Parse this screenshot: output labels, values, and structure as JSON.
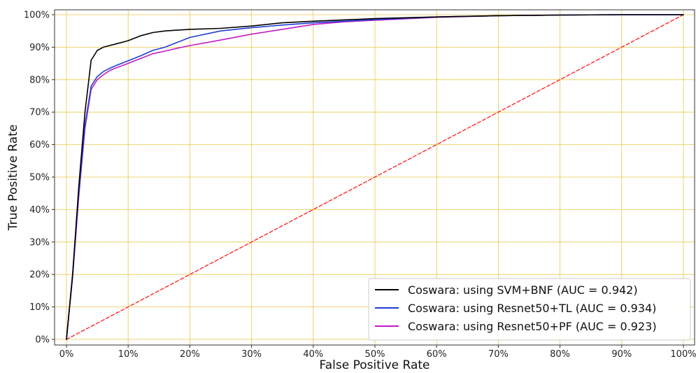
{
  "chart_data": {
    "type": "line",
    "title": "",
    "xlabel": "False Positive Rate",
    "ylabel": "True Positive Rate",
    "xlim": [
      0,
      1
    ],
    "ylim": [
      0,
      1
    ],
    "x_ticks": [
      "0%",
      "10%",
      "20%",
      "30%",
      "40%",
      "50%",
      "60%",
      "70%",
      "80%",
      "90%",
      "100%"
    ],
    "y_ticks": [
      "0%",
      "10%",
      "20%",
      "30%",
      "40%",
      "50%",
      "60%",
      "70%",
      "80%",
      "90%",
      "100%"
    ],
    "grid": true,
    "grid_color": "#e8c94a",
    "legend_position": "bottom-right",
    "series": [
      {
        "name": "Coswara: using SVM+BNF (AUC = 0.942)",
        "color": "#000000",
        "x": [
          0,
          0.01,
          0.02,
          0.03,
          0.04,
          0.05,
          0.06,
          0.07,
          0.08,
          0.1,
          0.12,
          0.14,
          0.16,
          0.2,
          0.25,
          0.3,
          0.35,
          0.4,
          0.5,
          0.6,
          0.7,
          0.8,
          0.9,
          1.0
        ],
        "y": [
          0,
          0.2,
          0.47,
          0.7,
          0.86,
          0.89,
          0.9,
          0.905,
          0.91,
          0.92,
          0.935,
          0.945,
          0.95,
          0.955,
          0.958,
          0.965,
          0.975,
          0.98,
          0.988,
          0.993,
          0.997,
          0.999,
          1.0,
          1.0
        ]
      },
      {
        "name": "Coswara: using Resnet50+TL (AUC = 0.934)",
        "color": "#1f3fd6",
        "x": [
          0,
          0.01,
          0.02,
          0.03,
          0.04,
          0.05,
          0.06,
          0.07,
          0.08,
          0.1,
          0.12,
          0.14,
          0.16,
          0.18,
          0.2,
          0.25,
          0.3,
          0.35,
          0.4,
          0.5,
          0.6,
          0.7,
          0.8,
          0.9,
          1.0
        ],
        "y": [
          0,
          0.2,
          0.45,
          0.66,
          0.78,
          0.81,
          0.825,
          0.835,
          0.843,
          0.858,
          0.873,
          0.89,
          0.9,
          0.915,
          0.93,
          0.95,
          0.96,
          0.968,
          0.975,
          0.985,
          0.993,
          0.997,
          0.999,
          1.0,
          1.0
        ]
      },
      {
        "name": "Coswara: using Resnet50+PF (AUC = 0.923)",
        "color": "#c41bc4",
        "x": [
          0,
          0.01,
          0.02,
          0.03,
          0.04,
          0.05,
          0.06,
          0.07,
          0.08,
          0.1,
          0.12,
          0.14,
          0.16,
          0.18,
          0.2,
          0.25,
          0.3,
          0.35,
          0.4,
          0.45,
          0.5,
          0.6,
          0.7,
          0.8,
          0.9,
          1.0
        ],
        "y": [
          0,
          0.19,
          0.44,
          0.65,
          0.77,
          0.8,
          0.815,
          0.828,
          0.836,
          0.85,
          0.865,
          0.88,
          0.888,
          0.897,
          0.905,
          0.922,
          0.94,
          0.955,
          0.97,
          0.978,
          0.983,
          0.992,
          0.997,
          0.999,
          1.0,
          1.0
        ]
      },
      {
        "name": "",
        "color": "#ff1a1a",
        "dashed": true,
        "x": [
          0,
          1
        ],
        "y": [
          0,
          1
        ]
      }
    ]
  }
}
